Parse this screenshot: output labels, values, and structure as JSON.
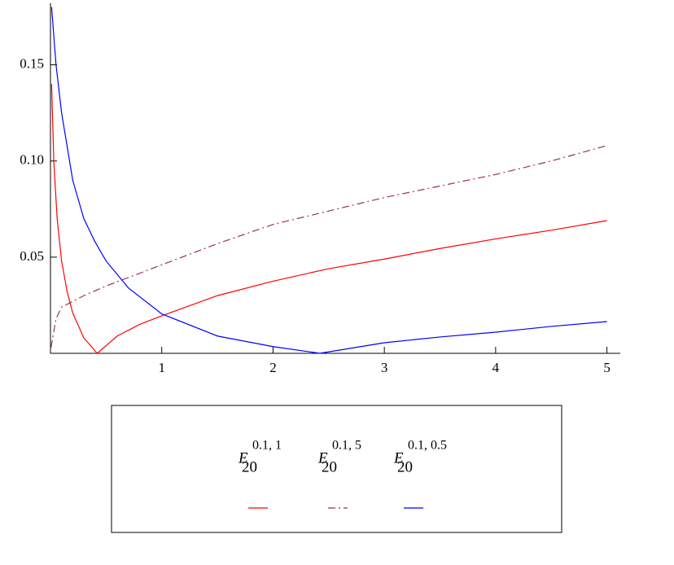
{
  "chart_data": {
    "type": "line",
    "xlim": [
      0,
      5.12
    ],
    "ylim": [
      0,
      0.182
    ],
    "xticks": [
      1,
      2,
      3,
      4,
      5
    ],
    "yticks": [
      0.05,
      {
        "value": 0.1,
        "label": "0.10"
      },
      0.15
    ],
    "series": [
      {
        "name": "E",
        "name_sub": "20",
        "name_sup": "0.1, 1",
        "color": "#ff0000",
        "dash": "solid",
        "x": [
          0.01,
          0.03,
          0.06,
          0.1,
          0.15,
          0.2,
          0.3,
          0.42,
          0.6,
          0.8,
          1,
          1.5,
          2,
          2.5,
          3,
          3.5,
          4,
          4.5,
          5
        ],
        "values": [
          0.14,
          0.1,
          0.07,
          0.048,
          0.032,
          0.021,
          0.008,
          0,
          0.009,
          0.015,
          0.0195,
          0.03,
          0.0375,
          0.044,
          0.049,
          0.0545,
          0.0595,
          0.064,
          0.069
        ]
      },
      {
        "name": "E",
        "name_sub": "20",
        "name_sup": "0.1, 5",
        "color": "#993344",
        "dash": "dash-dot",
        "x": [
          0.005,
          0.05,
          0.1,
          0.3,
          0.5,
          1,
          1.5,
          2,
          2.5,
          3,
          3.5,
          4,
          4.5,
          5
        ],
        "values": [
          0.003,
          0.018,
          0.024,
          0.03,
          0.035,
          0.046,
          0.057,
          0.067,
          0.074,
          0.081,
          0.087,
          0.093,
          0.1,
          0.108
        ]
      },
      {
        "name": "E",
        "name_sub": "20",
        "name_sup": "0.1, 0.5",
        "color": "#0000ff",
        "dash": "solid",
        "x": [
          0.01,
          0.05,
          0.1,
          0.2,
          0.3,
          0.4,
          0.5,
          0.7,
          1,
          1.5,
          2,
          2.42,
          3,
          3.5,
          4,
          4.5,
          5
        ],
        "values": [
          0.18,
          0.15,
          0.125,
          0.09,
          0.07,
          0.058,
          0.048,
          0.034,
          0.0205,
          0.009,
          0.0035,
          0,
          0.0055,
          0.0085,
          0.011,
          0.014,
          0.0165
        ]
      }
    ]
  }
}
